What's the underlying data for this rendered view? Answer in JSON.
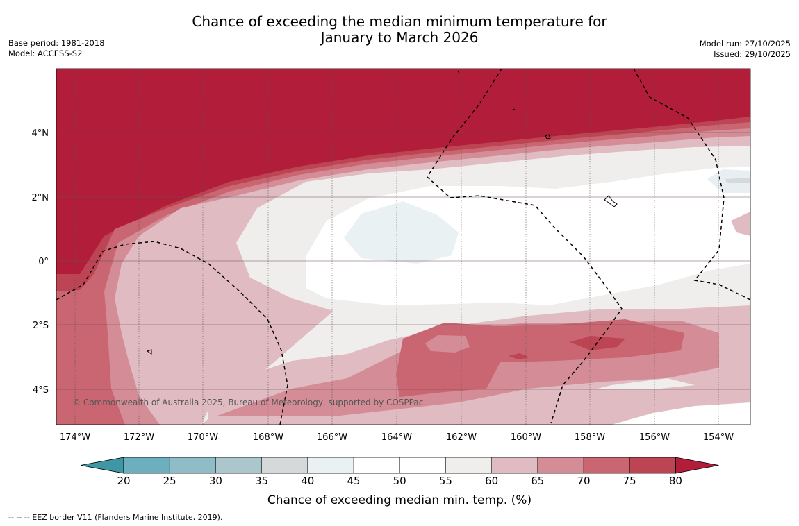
{
  "title": {
    "line1": "Chance of exceeding the median minimum temperature for",
    "line2": "January to March 2026"
  },
  "meta_left": {
    "base_period": "Base period: 1981-2018",
    "model": "Model: ACCESS-S2"
  },
  "meta_right": {
    "model_run": "Model run: 27/10/2025",
    "issued": "Issued: 29/10/2025"
  },
  "map": {
    "lat_labels": [
      "4°N",
      "2°N",
      "0°",
      "2°S",
      "4°S"
    ],
    "lon_labels": [
      "174°W",
      "172°W",
      "170°W",
      "168°W",
      "166°W",
      "164°W",
      "162°W",
      "160°W",
      "158°W",
      "156°W",
      "154°W"
    ],
    "copyright": "© Commonwealth of Australia 2025, Bureau of Meteorology, supported by COSPPac"
  },
  "colorbar": {
    "ticks": [
      "20",
      "25",
      "30",
      "35",
      "40",
      "45",
      "50",
      "55",
      "60",
      "65",
      "70",
      "75",
      "80"
    ],
    "colors": [
      "#3f97a6",
      "#6eafbf",
      "#8ebcc7",
      "#abc6cc",
      "#d6d9da",
      "#eaf1f3",
      "#ffffff",
      "#ffffff",
      "#efeeed",
      "#e0bcc2",
      "#d48d96",
      "#c96671",
      "#bd4553",
      "#b21e3a"
    ],
    "title": "Chance of exceeding median min. temp. (%)"
  },
  "legend_note": "--  --  -- EEZ border V11 (Flanders Marine Institute, 2019)."
}
